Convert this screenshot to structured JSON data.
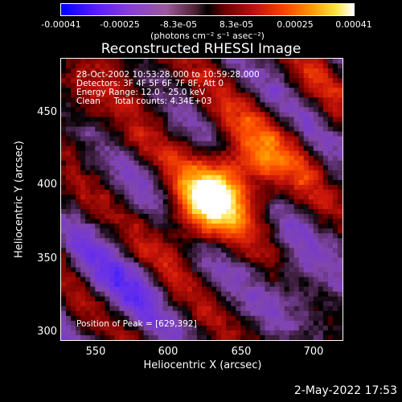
{
  "colorbar": {
    "ticks": [
      "-0.00041",
      "-0.00025",
      "-8.3e-05",
      "8.3e-05",
      "0.00025",
      "0.00041"
    ],
    "units": "(photons cm⁻² s⁻¹ asec⁻²)"
  },
  "chart_data": {
    "type": "heatmap",
    "title": "Reconstructed RHESSI Image",
    "xlabel": "Heliocentric X (arcsec)",
    "ylabel": "Heliocentric Y (arcsec)",
    "xlim": [
      527,
      718
    ],
    "ylim": [
      297,
      488
    ],
    "xticks": [
      "550",
      "600",
      "650",
      "700"
    ],
    "yticks": [
      "450",
      "400",
      "350",
      "300"
    ],
    "zlim": [
      -0.00041,
      0.00041
    ],
    "peak": {
      "x": 629,
      "y": 392
    },
    "annotations": [
      "28-Oct-2002 10:53:28.000 to 10:59:28.000",
      "Detectors: 3F 4F 5F 6F 7F 8F, Att 0",
      "Energy Range: 12.0 - 25.0 keV",
      "Clean     Total counts: 4.34E+03"
    ],
    "peak_label": "Position of Peak = [629,392]"
  },
  "footer": {
    "timestamp": "2-May-2022 17:53"
  }
}
